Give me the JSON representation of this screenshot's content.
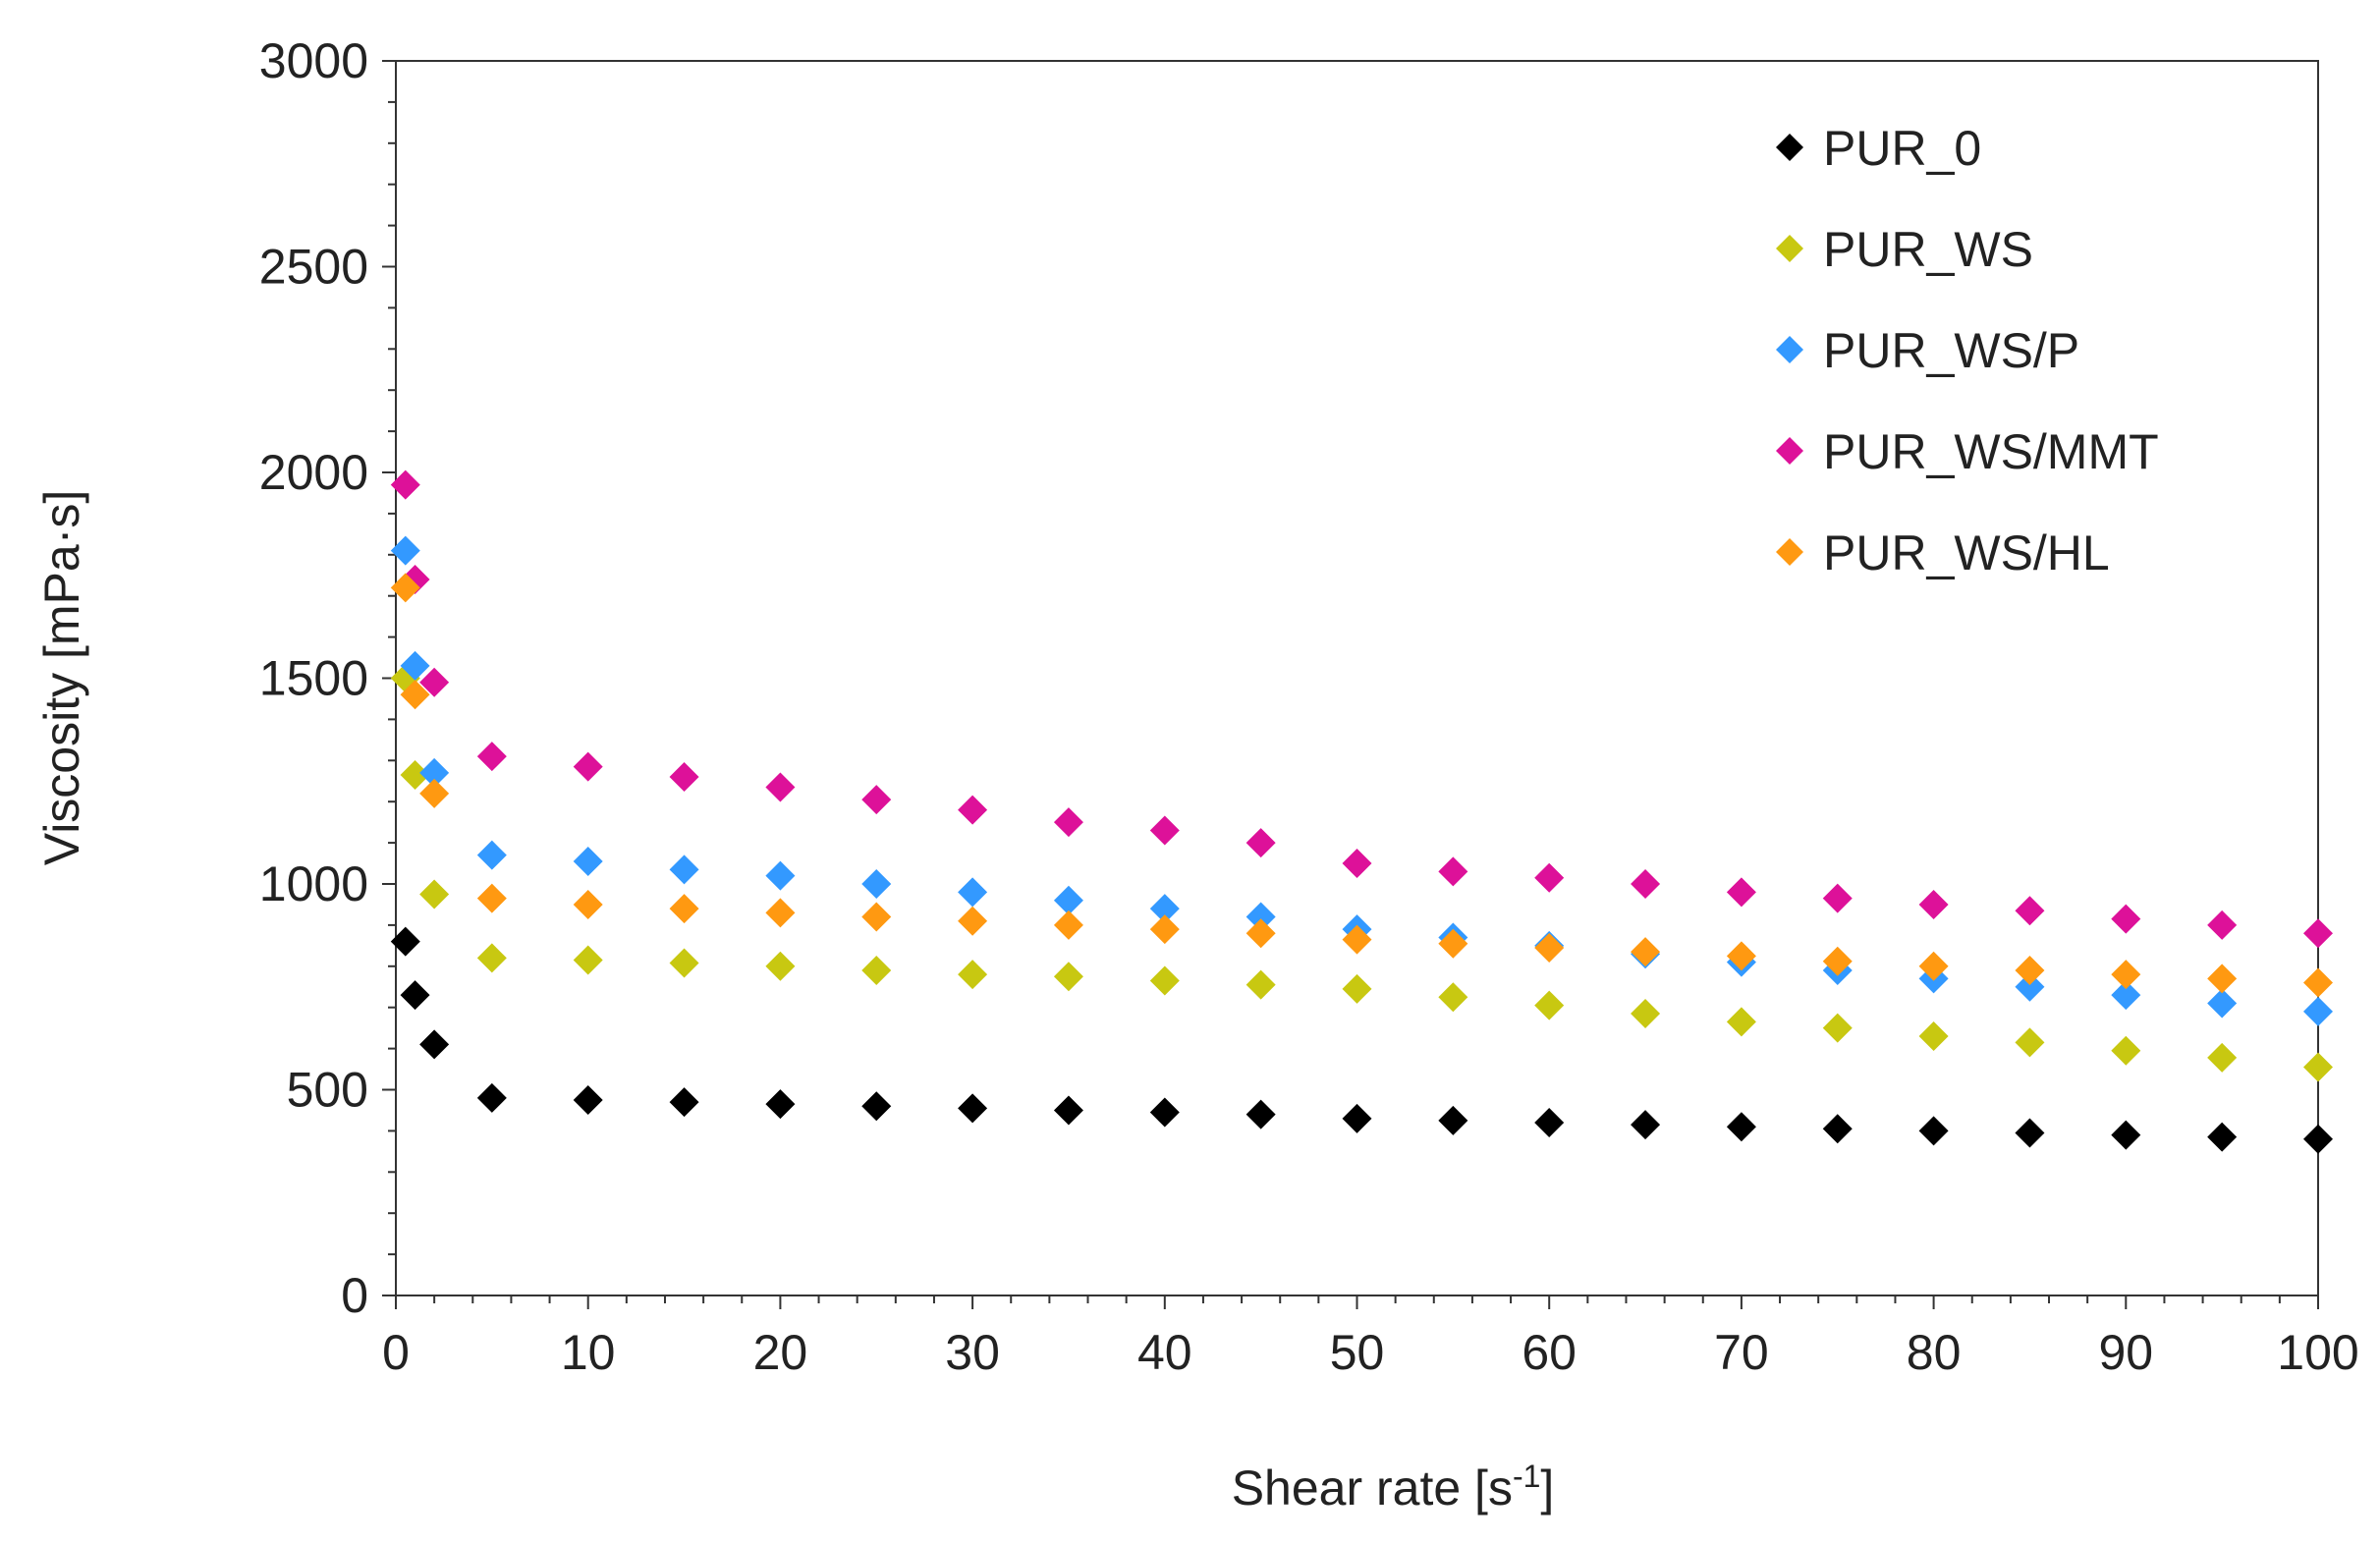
{
  "chart_data": {
    "type": "scatter",
    "xlabel_main": "Shear rate [s",
    "xlabel_sup": "-1",
    "xlabel_end": "]",
    "ylabel": "Viscosity [mPa·s]",
    "xlim": [
      0,
      100
    ],
    "ylim": [
      0,
      3000
    ],
    "xticks": [
      0,
      10,
      20,
      30,
      40,
      50,
      60,
      70,
      80,
      90,
      100
    ],
    "yticks": [
      0,
      500,
      1000,
      1500,
      2000,
      2500,
      3000
    ],
    "x_minor_step": 2,
    "y_minor_step": 100,
    "grid": false,
    "legend_position": "top-right",
    "x": [
      0.5,
      1,
      2,
      5,
      10,
      15,
      20,
      25,
      30,
      35,
      40,
      45,
      50,
      55,
      60,
      65,
      70,
      75,
      80,
      85,
      90,
      95,
      100
    ],
    "series": [
      {
        "name": "PUR_0",
        "color": "#000000",
        "values": [
          860,
          730,
          610,
          480,
          475,
          470,
          465,
          460,
          455,
          450,
          445,
          440,
          430,
          425,
          420,
          415,
          410,
          405,
          400,
          395,
          390,
          385,
          380
        ]
      },
      {
        "name": "PUR_WS",
        "color": "#c8c811",
        "values": [
          1500,
          1265,
          975,
          820,
          815,
          808,
          800,
          790,
          780,
          775,
          765,
          755,
          745,
          725,
          705,
          685,
          665,
          650,
          630,
          615,
          595,
          578,
          555
        ]
      },
      {
        "name": "PUR_WS/P",
        "color": "#3399ff",
        "values": [
          1810,
          1530,
          1270,
          1070,
          1055,
          1035,
          1020,
          1000,
          980,
          960,
          940,
          920,
          890,
          870,
          850,
          830,
          810,
          790,
          770,
          750,
          730,
          710,
          690
        ]
      },
      {
        "name": "PUR_WS/MMT",
        "color": "#dd1199",
        "values": [
          1970,
          1740,
          1490,
          1310,
          1285,
          1260,
          1235,
          1205,
          1180,
          1150,
          1130,
          1100,
          1050,
          1030,
          1015,
          1000,
          980,
          965,
          950,
          935,
          915,
          900,
          880
        ]
      },
      {
        "name": "PUR_WS/HL",
        "color": "#ff9911",
        "values": [
          1720,
          1460,
          1220,
          965,
          950,
          940,
          930,
          920,
          910,
          900,
          890,
          880,
          865,
          855,
          845,
          835,
          825,
          812,
          800,
          790,
          780,
          770,
          760
        ]
      }
    ]
  }
}
